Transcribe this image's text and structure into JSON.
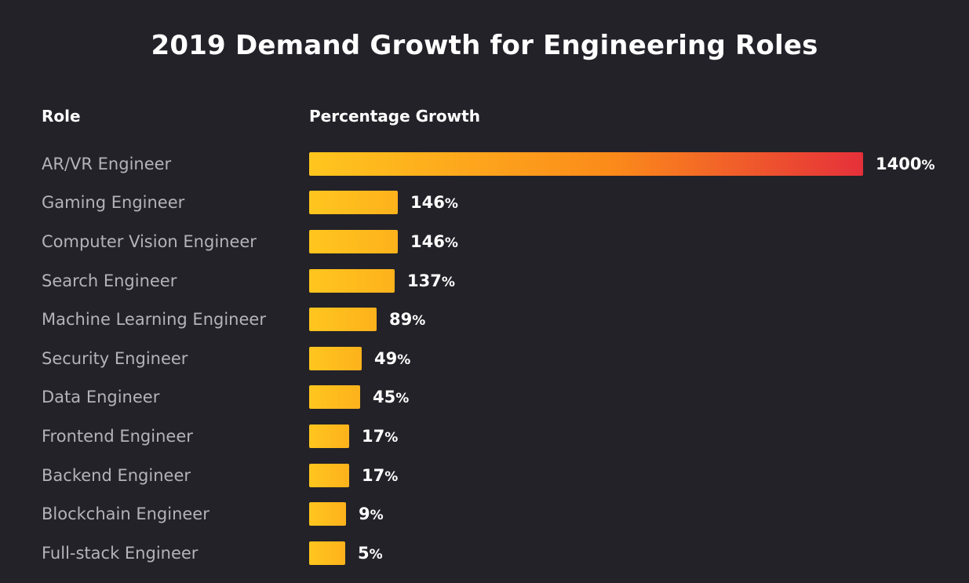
{
  "header": {
    "role_column": "Role",
    "growth_column": "Percentage Growth"
  },
  "colors": {
    "background": "#232229",
    "bar_start": "#ffc61e",
    "bar_mid": "#fb8a1a",
    "bar_end": "#e5303a",
    "label_text": "#b4b3b8",
    "value_text": "#ffffff"
  },
  "chart_data": {
    "type": "bar",
    "orientation": "horizontal",
    "title": "2019 Demand Growth for Engineering Roles",
    "unit": "%",
    "categories": [
      "AR/VR Engineer",
      "Gaming Engineer",
      "Computer Vision Engineer",
      "Search Engineer",
      "Machine Learning Engineer",
      "Security Engineer",
      "Data Engineer",
      "Frontend Engineer",
      "Backend Engineer",
      "Blockchain Engineer",
      "Full-stack Engineer"
    ],
    "values": [
      1400,
      146,
      146,
      137,
      89,
      49,
      45,
      17,
      17,
      9,
      5
    ],
    "value_labels": [
      "1400",
      "146",
      "146",
      "137",
      "89",
      "49",
      "45",
      "17",
      "17",
      "9",
      "5"
    ],
    "grid": false,
    "legend": "none"
  }
}
